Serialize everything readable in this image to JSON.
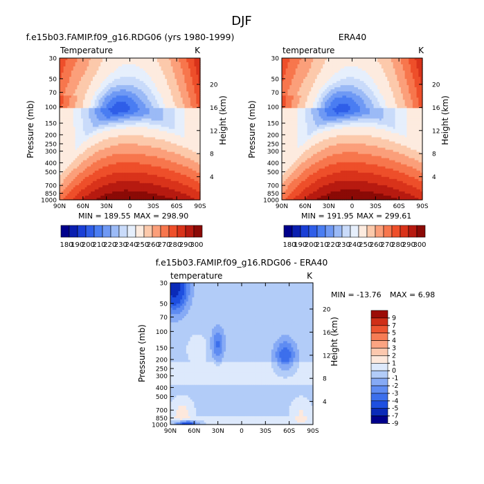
{
  "figure": {
    "title": "DJF",
    "colors": {
      "palette_18": [
        "#00008b",
        "#0a1fb0",
        "#1a3fd6",
        "#2f5ee8",
        "#4a7df2",
        "#6f99f4",
        "#9bbaf6",
        "#c9dbfa",
        "#e6effc",
        "#fdebdf",
        "#fcc9ab",
        "#fb9f7a",
        "#f7764d",
        "#ee4f2a",
        "#d9331a",
        "#b71a10",
        "#8b0a06"
      ],
      "diff_palette": [
        "#00008b",
        "#0a2ab8",
        "#1e4fe0",
        "#3c6fec",
        "#5f8cf2",
        "#86aaf5",
        "#b2ccf8",
        "#dde9fc",
        "#fde8dc",
        "#fcc8ae",
        "#fba482",
        "#f67c55",
        "#ec5430",
        "#cf2e17",
        "#9c0c07"
      ]
    }
  },
  "chart_data": [
    {
      "type": "heatmap",
      "title": "f.e15b03.FAMIP.f09_g16.RDG06 (yrs 1980-1999)",
      "subtitle_left": "Temperature",
      "subtitle_right": "K",
      "xlabel": "",
      "ylabel": "Pressure (mb)",
      "ylabel_right": "Height (km)",
      "x_ticks": [
        "90N",
        "60N",
        "30N",
        "0",
        "30S",
        "60S",
        "90S"
      ],
      "y_ticks": [
        "30",
        "50",
        "70",
        "100",
        "150",
        "200",
        "250",
        "300",
        "400",
        "500",
        "700",
        "850",
        "1000"
      ],
      "y_right_ticks": [
        "20",
        "16",
        "12",
        "8",
        "4"
      ],
      "min_label": "MIN = 189.55",
      "max_label": "MAX = 298.90",
      "colorbar_labels": [
        "180",
        "190",
        "200",
        "210",
        "220",
        "230",
        "240",
        "250",
        "260",
        "270",
        "280",
        "290",
        "300"
      ],
      "levels": [
        175,
        180,
        185,
        190,
        195,
        200,
        205,
        210,
        215,
        220,
        230,
        240,
        250,
        260,
        270,
        280,
        290,
        295,
        300
      ],
      "grid": false
    },
    {
      "type": "heatmap",
      "title": "ERA40",
      "subtitle_left": "temperature",
      "subtitle_right": "K",
      "xlabel": "",
      "ylabel": "Pressure (mb)",
      "ylabel_right": "Height (km)",
      "x_ticks": [
        "90N",
        "60N",
        "30N",
        "0",
        "30S",
        "60S",
        "90S"
      ],
      "y_ticks": [
        "30",
        "50",
        "70",
        "100",
        "150",
        "200",
        "250",
        "300",
        "400",
        "500",
        "700",
        "850",
        "1000"
      ],
      "y_right_ticks": [
        "20",
        "16",
        "12",
        "8",
        "4"
      ],
      "min_label": "MIN = 191.95",
      "max_label": "MAX = 299.61",
      "colorbar_labels": [
        "180",
        "190",
        "200",
        "210",
        "220",
        "230",
        "240",
        "250",
        "260",
        "270",
        "280",
        "290",
        "300"
      ],
      "grid": false
    },
    {
      "type": "heatmap",
      "title": "f.e15b03.FAMIP.f09_g16.RDG06 - ERA40",
      "subtitle_left": "temperature",
      "subtitle_right": "K",
      "xlabel": "",
      "ylabel": "Pressure (mb)",
      "ylabel_right": "Height (km)",
      "x_ticks": [
        "90N",
        "60N",
        "30N",
        "0",
        "30S",
        "60S",
        "90S"
      ],
      "y_ticks": [
        "30",
        "50",
        "70",
        "100",
        "150",
        "200",
        "250",
        "300",
        "400",
        "500",
        "700",
        "850",
        "1000"
      ],
      "y_right_ticks": [
        "20",
        "16",
        "12",
        "8",
        "4"
      ],
      "min_label": "MIN = -13.76",
      "max_label": "MAX =    6.98",
      "colorbar_labels": [
        "9",
        "7",
        "5",
        "4",
        "3",
        "2",
        "1",
        "0",
        "-1",
        "-2",
        "-3",
        "-4",
        "-5",
        "-7",
        "-9"
      ],
      "grid": false
    }
  ]
}
